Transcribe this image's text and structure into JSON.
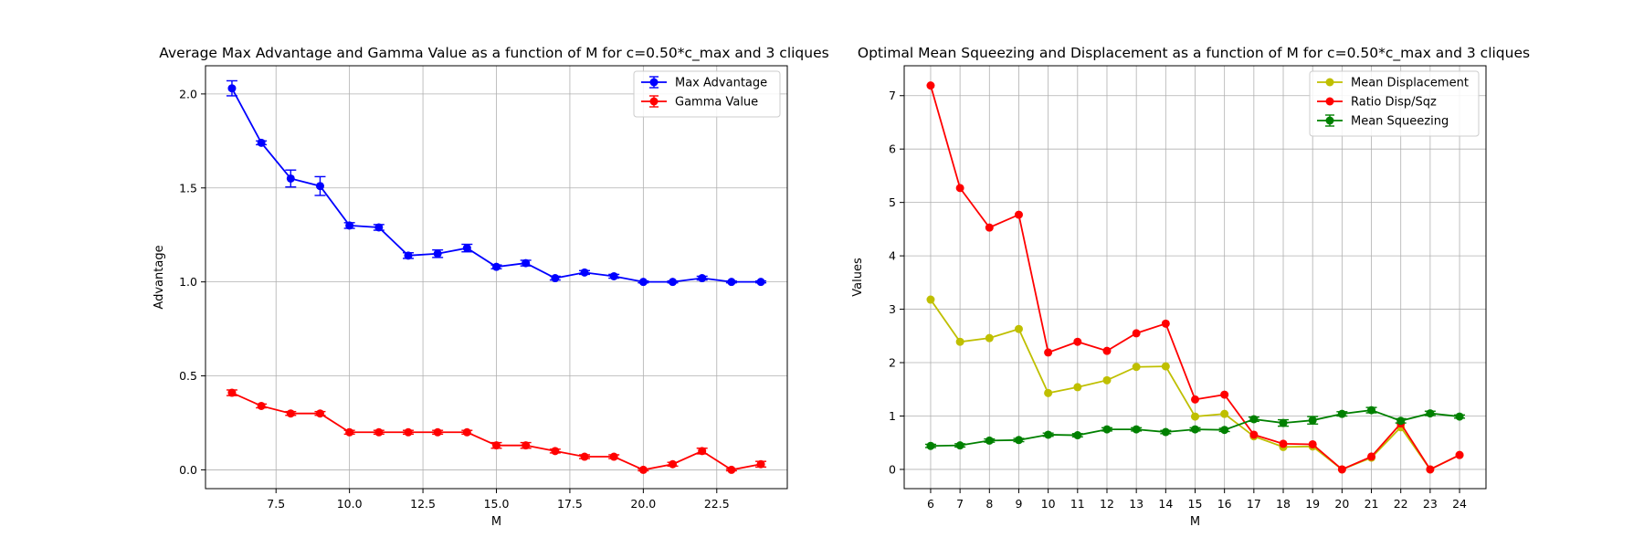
{
  "chart_data": [
    {
      "type": "line",
      "title": "Average Max Advantage and Gamma Value as a function of M for c=0.50*c_max and 3 cliques",
      "xlabel": "M",
      "ylabel": "Advantage",
      "xlim": [
        5.1,
        24.9
      ],
      "ylim": [
        -0.1,
        2.15
      ],
      "xticks": [
        "7.5",
        "10.0",
        "12.5",
        "15.0",
        "17.5",
        "20.0",
        "22.5"
      ],
      "yticks": [
        "0.0",
        "0.5",
        "1.0",
        "1.5",
        "2.0"
      ],
      "grid": true,
      "legend_position": "upper right",
      "x": [
        6,
        7,
        8,
        9,
        10,
        11,
        12,
        13,
        14,
        15,
        16,
        17,
        18,
        19,
        20,
        21,
        22,
        23,
        24
      ],
      "series": [
        {
          "name": "Max Advantage",
          "color": "#0000ff",
          "marker": "circle",
          "errorbars": true,
          "values": [
            2.03,
            1.74,
            1.55,
            1.51,
            1.3,
            1.29,
            1.14,
            1.15,
            1.18,
            1.08,
            1.1,
            1.02,
            1.05,
            1.03,
            1.0,
            1.0,
            1.02,
            1.0,
            1.0
          ],
          "errors": [
            0.04,
            0.01,
            0.045,
            0.05,
            0.015,
            0.015,
            0.015,
            0.02,
            0.02,
            0.01,
            0.015,
            0.01,
            0.01,
            0.01,
            0.005,
            0.005,
            0.01,
            0.005,
            0.005
          ]
        },
        {
          "name": "Gamma Value",
          "color": "#ff0000",
          "marker": "circle",
          "errorbars": true,
          "values": [
            0.41,
            0.34,
            0.3,
            0.3,
            0.2,
            0.2,
            0.2,
            0.2,
            0.2,
            0.13,
            0.13,
            0.1,
            0.07,
            0.07,
            0.0,
            0.03,
            0.1,
            0.0,
            0.03
          ],
          "errors": [
            0.015,
            0.01,
            0.01,
            0.01,
            0.01,
            0.01,
            0.01,
            0.01,
            0.01,
            0.015,
            0.015,
            0.01,
            0.01,
            0.01,
            0.005,
            0.01,
            0.015,
            0.005,
            0.015
          ]
        }
      ]
    },
    {
      "type": "line",
      "title": "Optimal Mean Squeezing and Displacement as a function of M for c=0.50*c_max and 3 cliques",
      "xlabel": "M",
      "ylabel": "Values",
      "xlim": [
        5.1,
        24.9
      ],
      "ylim": [
        -0.36,
        7.56
      ],
      "xticks": [
        "6",
        "7",
        "8",
        "9",
        "10",
        "11",
        "12",
        "13",
        "14",
        "15",
        "16",
        "17",
        "18",
        "19",
        "20",
        "21",
        "22",
        "23",
        "24"
      ],
      "yticks": [
        "0",
        "1",
        "2",
        "3",
        "4",
        "5",
        "6",
        "7"
      ],
      "grid": true,
      "legend_position": "upper right",
      "x": [
        6,
        7,
        8,
        9,
        10,
        11,
        12,
        13,
        14,
        15,
        16,
        17,
        18,
        19,
        20,
        21,
        22,
        23,
        24
      ],
      "series": [
        {
          "name": "Mean Displacement",
          "color": "#bfbf00",
          "marker": "circle",
          "errorbars": false,
          "values": [
            3.18,
            2.39,
            2.46,
            2.63,
            1.43,
            1.54,
            1.67,
            1.92,
            1.93,
            0.99,
            1.04,
            0.62,
            0.42,
            0.43,
            0.0,
            0.22,
            0.79,
            0.0,
            0.27
          ]
        },
        {
          "name": "Ratio Disp/Sqz",
          "color": "#ff0000",
          "marker": "circle",
          "errorbars": false,
          "values": [
            7.19,
            5.27,
            4.53,
            4.77,
            2.19,
            2.39,
            2.22,
            2.55,
            2.73,
            1.31,
            1.4,
            0.65,
            0.48,
            0.47,
            0.0,
            0.24,
            0.86,
            0.0,
            0.27
          ]
        },
        {
          "name": "Mean Squeezing",
          "color": "#008000",
          "marker": "circle",
          "errorbars": true,
          "values": [
            0.44,
            0.45,
            0.54,
            0.55,
            0.65,
            0.64,
            0.75,
            0.75,
            0.7,
            0.75,
            0.74,
            0.94,
            0.87,
            0.92,
            1.04,
            1.11,
            0.91,
            1.05,
            0.99
          ],
          "errors": [
            0.03,
            0.03,
            0.03,
            0.03,
            0.03,
            0.03,
            0.03,
            0.03,
            0.03,
            0.03,
            0.03,
            0.04,
            0.06,
            0.07,
            0.04,
            0.05,
            0.04,
            0.04,
            0.03
          ]
        }
      ]
    }
  ]
}
